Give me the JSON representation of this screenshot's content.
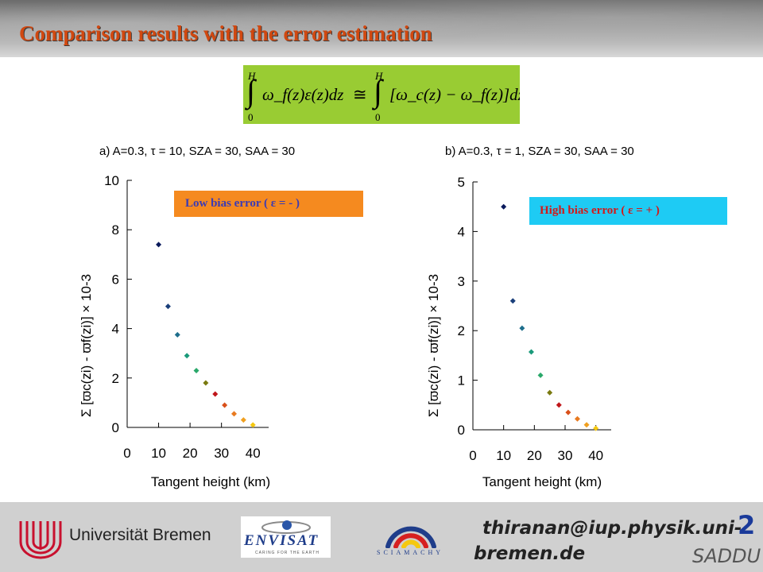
{
  "header": {
    "title": "Comparison results with the error estimation"
  },
  "formula": {
    "upper_limit": "H",
    "lower_limit": "0",
    "lhs": "ω_f(z)ε(z)dz",
    "relation": "≅",
    "rhs": "[ω_c(z) − ω_f(z)]dz"
  },
  "annotations": {
    "low": "Low bias error ( ε = - )",
    "high": "High bias error ( ε = + )"
  },
  "colors": {
    "title": "#d14810",
    "formula_bg": "#99cc33",
    "low_box": "#f58a1f",
    "high_box": "#1ecbf4",
    "point_colors": [
      "#0a1a5c",
      "#1a3f7a",
      "#1e6e8c",
      "#1a9a7a",
      "#2aa86a",
      "#7a7a10",
      "#c0161a",
      "#d9501a",
      "#e87a20",
      "#f0a020",
      "#f5c810"
    ]
  },
  "chart_data": [
    {
      "type": "scatter",
      "title": "a) A=0.3, τ = 10, SZA = 30, SAA = 30",
      "xlabel": "Tangent height (km)",
      "ylabel": "Σ [ϖc(zi) - ϖf(zi)] × 10-3",
      "xlim": [
        0,
        45
      ],
      "ylim": [
        0,
        10
      ],
      "xticks": [
        0,
        10,
        20,
        30,
        40
      ],
      "yticks": [
        0,
        2,
        4,
        6,
        8,
        10
      ],
      "x": [
        10,
        13,
        16,
        19,
        22,
        25,
        28,
        31,
        34,
        37,
        40
      ],
      "y": [
        7.4,
        4.9,
        3.75,
        2.9,
        2.3,
        1.8,
        1.35,
        0.9,
        0.55,
        0.3,
        0.1
      ]
    },
    {
      "type": "scatter",
      "title": "b) A=0.3, τ = 1, SZA = 30, SAA = 30",
      "xlabel": "Tangent height (km)",
      "ylabel": "Σ [ϖc(zi) - ϖf(zi)] × 10-3",
      "xlim": [
        0,
        45
      ],
      "ylim": [
        0,
        5
      ],
      "xticks": [
        0,
        10,
        20,
        30,
        40
      ],
      "yticks": [
        0,
        1,
        2,
        3,
        4,
        5
      ],
      "x": [
        10,
        13,
        16,
        19,
        22,
        25,
        28,
        31,
        34,
        37,
        40
      ],
      "y": [
        4.5,
        2.6,
        2.05,
        1.57,
        1.1,
        0.75,
        0.5,
        0.35,
        0.22,
        0.1,
        0.03
      ]
    }
  ],
  "footer": {
    "university": "Universität Bremen",
    "envisat": "ENVISAT",
    "envisat_sub": "CARING FOR THE EARTH",
    "sciamachy": "SCIAMACHY",
    "email_line1": "thiranan@iup.physik.uni-",
    "email_line2": "bremen.de",
    "page_number": "2",
    "saddu": "SADDU"
  }
}
